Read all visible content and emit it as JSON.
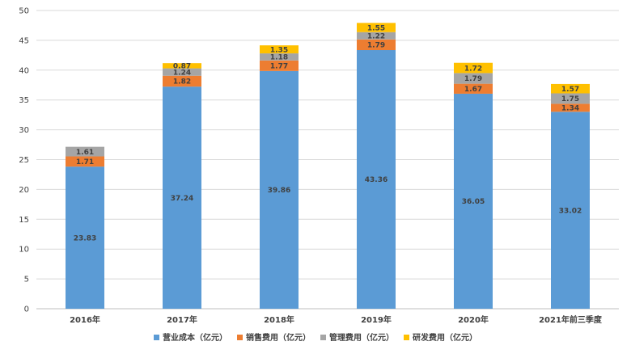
{
  "chart_data": {
    "type": "bar",
    "stacked": true,
    "categories": [
      "2016年",
      "2017年",
      "2018年",
      "2019年",
      "2020年",
      "2021年前三季度"
    ],
    "ylim": [
      0,
      50
    ],
    "yticks": [
      0,
      5,
      10,
      15,
      20,
      25,
      30,
      35,
      40,
      45,
      50
    ],
    "grid": true,
    "legend_position": "bottom",
    "series": [
      {
        "name": "营业成本（亿元）",
        "color": "#5b9bd5",
        "values": [
          23.83,
          37.24,
          39.86,
          43.36,
          36.05,
          33.02
        ],
        "labels": [
          "23.83",
          "37.24",
          "39.86",
          "43.36",
          "36.05",
          "33.02"
        ]
      },
      {
        "name": "销售费用（亿元）",
        "color": "#ed7d31",
        "values": [
          1.71,
          1.82,
          1.77,
          1.79,
          1.67,
          1.34
        ],
        "labels": [
          "1.71",
          "1.82",
          "1.77",
          "1.79",
          "1.67",
          "1.34"
        ]
      },
      {
        "name": "管理费用（亿元）",
        "color": "#a5a5a5",
        "values": [
          1.61,
          1.24,
          1.18,
          1.22,
          1.79,
          1.75
        ],
        "labels": [
          "1.61",
          "1.24",
          "1.18",
          "1.22",
          "1.79",
          "1.75"
        ]
      },
      {
        "name": "研发费用（亿元）",
        "color": "#ffc000",
        "values": [
          null,
          0.87,
          1.35,
          1.55,
          1.72,
          1.57
        ],
        "labels": [
          "",
          "0.87",
          "1.35",
          "1.55",
          "1.72",
          "1.57"
        ]
      }
    ]
  }
}
